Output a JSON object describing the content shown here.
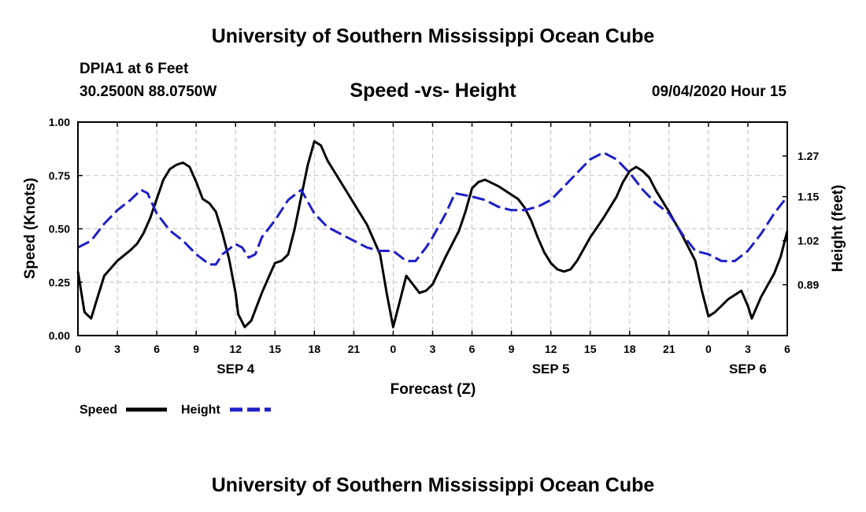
{
  "header": {
    "title": "University of Southern Mississippi Ocean Cube",
    "station": "DPIA1 at 6 Feet",
    "coords": "30.2500N 88.0750W",
    "plot_title": "Speed -vs- Height",
    "datetime": "09/04/2020 Hour 15"
  },
  "footer": {
    "title": "University of Southern Mississippi Ocean Cube"
  },
  "legend": {
    "speed_label": "Speed",
    "height_label": "Height"
  },
  "colors": {
    "speed": "#000000",
    "height": "#1e1ec8",
    "grid": "#bfbfbf"
  },
  "chart_data": {
    "type": "line",
    "title": "Speed -vs- Height",
    "xlabel": "Forecast (Z)",
    "ylabel": "Speed (Knots)",
    "y2label": "Height (feet)",
    "xlim": [
      0,
      54
    ],
    "ylim": [
      0,
      1
    ],
    "y2lim": [
      0.74,
      1.37
    ],
    "x_ticks": [
      0,
      3,
      6,
      9,
      12,
      15,
      18,
      21,
      24,
      27,
      30,
      33,
      36,
      39,
      42,
      45,
      48,
      51,
      54
    ],
    "x_tick_labels": [
      "0",
      "3",
      "6",
      "9",
      "12",
      "15",
      "18",
      "21",
      "0",
      "3",
      "6",
      "9",
      "12",
      "15",
      "18",
      "21",
      "0",
      "3",
      "6"
    ],
    "date_labels": [
      {
        "x": 12,
        "label": "SEP 4"
      },
      {
        "x": 36,
        "label": "SEP 5"
      },
      {
        "x": 51,
        "label": "SEP 6"
      }
    ],
    "y_ticks": [
      0.0,
      0.25,
      0.5,
      0.75,
      1.0
    ],
    "y_tick_labels": [
      "0.00",
      "0.25",
      "0.50",
      "0.75",
      "1.00"
    ],
    "y2_ticks": [
      0.89,
      1.02,
      1.15,
      1.27
    ],
    "y2_tick_labels": [
      "0.89",
      "1.02",
      "1.15",
      "1.27"
    ],
    "grid": true,
    "series": [
      {
        "name": "Speed",
        "axis": "left",
        "style": "solid",
        "points": [
          [
            0,
            0.3
          ],
          [
            0.5,
            0.11
          ],
          [
            1,
            0.08
          ],
          [
            1.5,
            0.18
          ],
          [
            2,
            0.28
          ],
          [
            3,
            0.35
          ],
          [
            4,
            0.4
          ],
          [
            4.5,
            0.43
          ],
          [
            5,
            0.48
          ],
          [
            5.5,
            0.55
          ],
          [
            6,
            0.64
          ],
          [
            6.5,
            0.73
          ],
          [
            7,
            0.78
          ],
          [
            7.5,
            0.8
          ],
          [
            8,
            0.81
          ],
          [
            8.5,
            0.79
          ],
          [
            9,
            0.72
          ],
          [
            9.5,
            0.64
          ],
          [
            10,
            0.62
          ],
          [
            10.5,
            0.58
          ],
          [
            11,
            0.48
          ],
          [
            11.5,
            0.36
          ],
          [
            12,
            0.2
          ],
          [
            12.2,
            0.1
          ],
          [
            12.7,
            0.04
          ],
          [
            13.2,
            0.07
          ],
          [
            14,
            0.2
          ],
          [
            14.5,
            0.27
          ],
          [
            15,
            0.34
          ],
          [
            15.5,
            0.35
          ],
          [
            16,
            0.38
          ],
          [
            16.5,
            0.5
          ],
          [
            17,
            0.65
          ],
          [
            17.5,
            0.8
          ],
          [
            18,
            0.91
          ],
          [
            18.5,
            0.89
          ],
          [
            19,
            0.82
          ],
          [
            20,
            0.72
          ],
          [
            21,
            0.62
          ],
          [
            22,
            0.52
          ],
          [
            23,
            0.38
          ],
          [
            23.5,
            0.2
          ],
          [
            24,
            0.04
          ],
          [
            24.5,
            0.16
          ],
          [
            25,
            0.28
          ],
          [
            25.5,
            0.24
          ],
          [
            26,
            0.2
          ],
          [
            26.5,
            0.21
          ],
          [
            27,
            0.24
          ],
          [
            28,
            0.37
          ],
          [
            29,
            0.49
          ],
          [
            29.5,
            0.58
          ],
          [
            30,
            0.69
          ],
          [
            30.5,
            0.72
          ],
          [
            31,
            0.73
          ],
          [
            32,
            0.7
          ],
          [
            33,
            0.66
          ],
          [
            33.5,
            0.64
          ],
          [
            34,
            0.6
          ],
          [
            34.5,
            0.54
          ],
          [
            35,
            0.46
          ],
          [
            35.5,
            0.39
          ],
          [
            36,
            0.34
          ],
          [
            36.5,
            0.31
          ],
          [
            37,
            0.3
          ],
          [
            37.5,
            0.31
          ],
          [
            38,
            0.35
          ],
          [
            39,
            0.46
          ],
          [
            40,
            0.55
          ],
          [
            41,
            0.65
          ],
          [
            41.5,
            0.72
          ],
          [
            42,
            0.77
          ],
          [
            42.5,
            0.79
          ],
          [
            43,
            0.77
          ],
          [
            43.5,
            0.74
          ],
          [
            44,
            0.68
          ],
          [
            45,
            0.58
          ],
          [
            46,
            0.47
          ],
          [
            47,
            0.35
          ],
          [
            47.5,
            0.21
          ],
          [
            48,
            0.09
          ],
          [
            48.5,
            0.11
          ],
          [
            49,
            0.14
          ],
          [
            49.5,
            0.17
          ],
          [
            50,
            0.19
          ],
          [
            50.5,
            0.21
          ],
          [
            51,
            0.14
          ],
          [
            51.3,
            0.08
          ],
          [
            52,
            0.18
          ],
          [
            53,
            0.29
          ],
          [
            53.5,
            0.37
          ],
          [
            54,
            0.49
          ]
        ]
      },
      {
        "name": "Height",
        "axis": "right",
        "style": "dashed",
        "points": [
          [
            0,
            1.0
          ],
          [
            1,
            1.02
          ],
          [
            2,
            1.07
          ],
          [
            3,
            1.11
          ],
          [
            4,
            1.14
          ],
          [
            4.8,
            1.17
          ],
          [
            5.3,
            1.16
          ],
          [
            6,
            1.1
          ],
          [
            7,
            1.05
          ],
          [
            8,
            1.02
          ],
          [
            9,
            0.98
          ],
          [
            10,
            0.95
          ],
          [
            10.5,
            0.95
          ],
          [
            11,
            0.98
          ],
          [
            12,
            1.01
          ],
          [
            12.5,
            1.0
          ],
          [
            13,
            0.97
          ],
          [
            13.5,
            0.98
          ],
          [
            14,
            1.03
          ],
          [
            15,
            1.08
          ],
          [
            16,
            1.14
          ],
          [
            17,
            1.17
          ],
          [
            18,
            1.1
          ],
          [
            19,
            1.06
          ],
          [
            20,
            1.04
          ],
          [
            21,
            1.02
          ],
          [
            22,
            1.0
          ],
          [
            23,
            0.99
          ],
          [
            24,
            0.99
          ],
          [
            25,
            0.96
          ],
          [
            25.7,
            0.96
          ],
          [
            26.5,
            1.0
          ],
          [
            27,
            1.03
          ],
          [
            28,
            1.1
          ],
          [
            28.7,
            1.16
          ],
          [
            30,
            1.15
          ],
          [
            31,
            1.14
          ],
          [
            32,
            1.12
          ],
          [
            33,
            1.11
          ],
          [
            34,
            1.11
          ],
          [
            35,
            1.12
          ],
          [
            36,
            1.14
          ],
          [
            37,
            1.18
          ],
          [
            38,
            1.22
          ],
          [
            39,
            1.26
          ],
          [
            40,
            1.28
          ],
          [
            41,
            1.26
          ],
          [
            42,
            1.22
          ],
          [
            43,
            1.17
          ],
          [
            44,
            1.13
          ],
          [
            45,
            1.1
          ],
          [
            46,
            1.04
          ],
          [
            47,
            0.99
          ],
          [
            48,
            0.98
          ],
          [
            49,
            0.96
          ],
          [
            50,
            0.96
          ],
          [
            51,
            0.99
          ],
          [
            52,
            1.04
          ],
          [
            53,
            1.1
          ],
          [
            54,
            1.15
          ]
        ]
      }
    ]
  }
}
